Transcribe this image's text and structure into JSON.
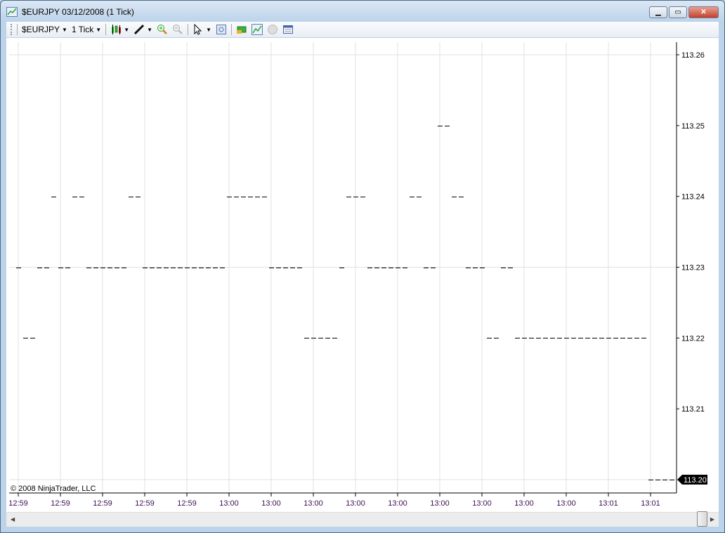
{
  "window": {
    "title": "$EURJPY  03/12/2008 (1 Tick)",
    "buttons": [
      "minimize",
      "maximize",
      "close"
    ]
  },
  "toolbar": {
    "instrument": "$EURJPY",
    "interval": "1 Tick",
    "icons": [
      "candlestick-style-icon",
      "draw-pen-icon",
      "zoom-in-icon",
      "zoom-out-icon",
      "pointer-icon",
      "properties-icon",
      "data-box-icon",
      "indicators-icon",
      "strategy-icon",
      "chart-table-icon"
    ]
  },
  "chart": {
    "copyright": "© 2008 NinjaTrader, LLC",
    "last_price_label": "113.20",
    "colors": {
      "bar": "#000000",
      "grid": "#e2e2e2",
      "time_label": "#3c1053",
      "last_price_bg": "#000000"
    }
  },
  "chart_data": {
    "type": "line",
    "style": "tick bars (flat line per tick)",
    "y_tick_labels": [
      "113.26",
      "113.25",
      "113.24",
      "113.23",
      "113.22",
      "113.21"
    ],
    "ylim": [
      113.2,
      113.26
    ],
    "x_tick_labels": [
      "12:59",
      "12:59",
      "12:59",
      "12:59",
      "12:59",
      "13:00",
      "13:00",
      "13:00",
      "13:00",
      "13:00",
      "13:00",
      "13:00",
      "13:00",
      "13:00",
      "13:01",
      "13:01"
    ],
    "grid": "vertical at each time label; horizontal at 113.26, 113.23, 113.20",
    "prices": [
      113.23,
      113.22,
      113.22,
      113.23,
      113.23,
      113.24,
      113.23,
      113.23,
      113.24,
      113.24,
      113.23,
      113.23,
      113.23,
      113.23,
      113.23,
      113.23,
      113.24,
      113.24,
      113.23,
      113.23,
      113.23,
      113.23,
      113.23,
      113.23,
      113.23,
      113.23,
      113.23,
      113.23,
      113.23,
      113.23,
      113.24,
      113.24,
      113.24,
      113.24,
      113.24,
      113.24,
      113.23,
      113.23,
      113.23,
      113.23,
      113.23,
      113.22,
      113.22,
      113.22,
      113.22,
      113.22,
      113.23,
      113.24,
      113.24,
      113.24,
      113.23,
      113.23,
      113.23,
      113.23,
      113.23,
      113.23,
      113.24,
      113.24,
      113.23,
      113.23,
      113.25,
      113.25,
      113.24,
      113.24,
      113.23,
      113.23,
      113.23,
      113.22,
      113.22,
      113.23,
      113.23,
      113.22,
      113.22,
      113.22,
      113.22,
      113.22,
      113.22,
      113.22,
      113.22,
      113.22,
      113.22,
      113.22,
      113.22,
      113.22,
      113.22,
      113.22,
      113.22,
      113.22,
      113.22,
      113.22,
      113.2,
      113.2,
      113.2,
      113.2
    ]
  }
}
